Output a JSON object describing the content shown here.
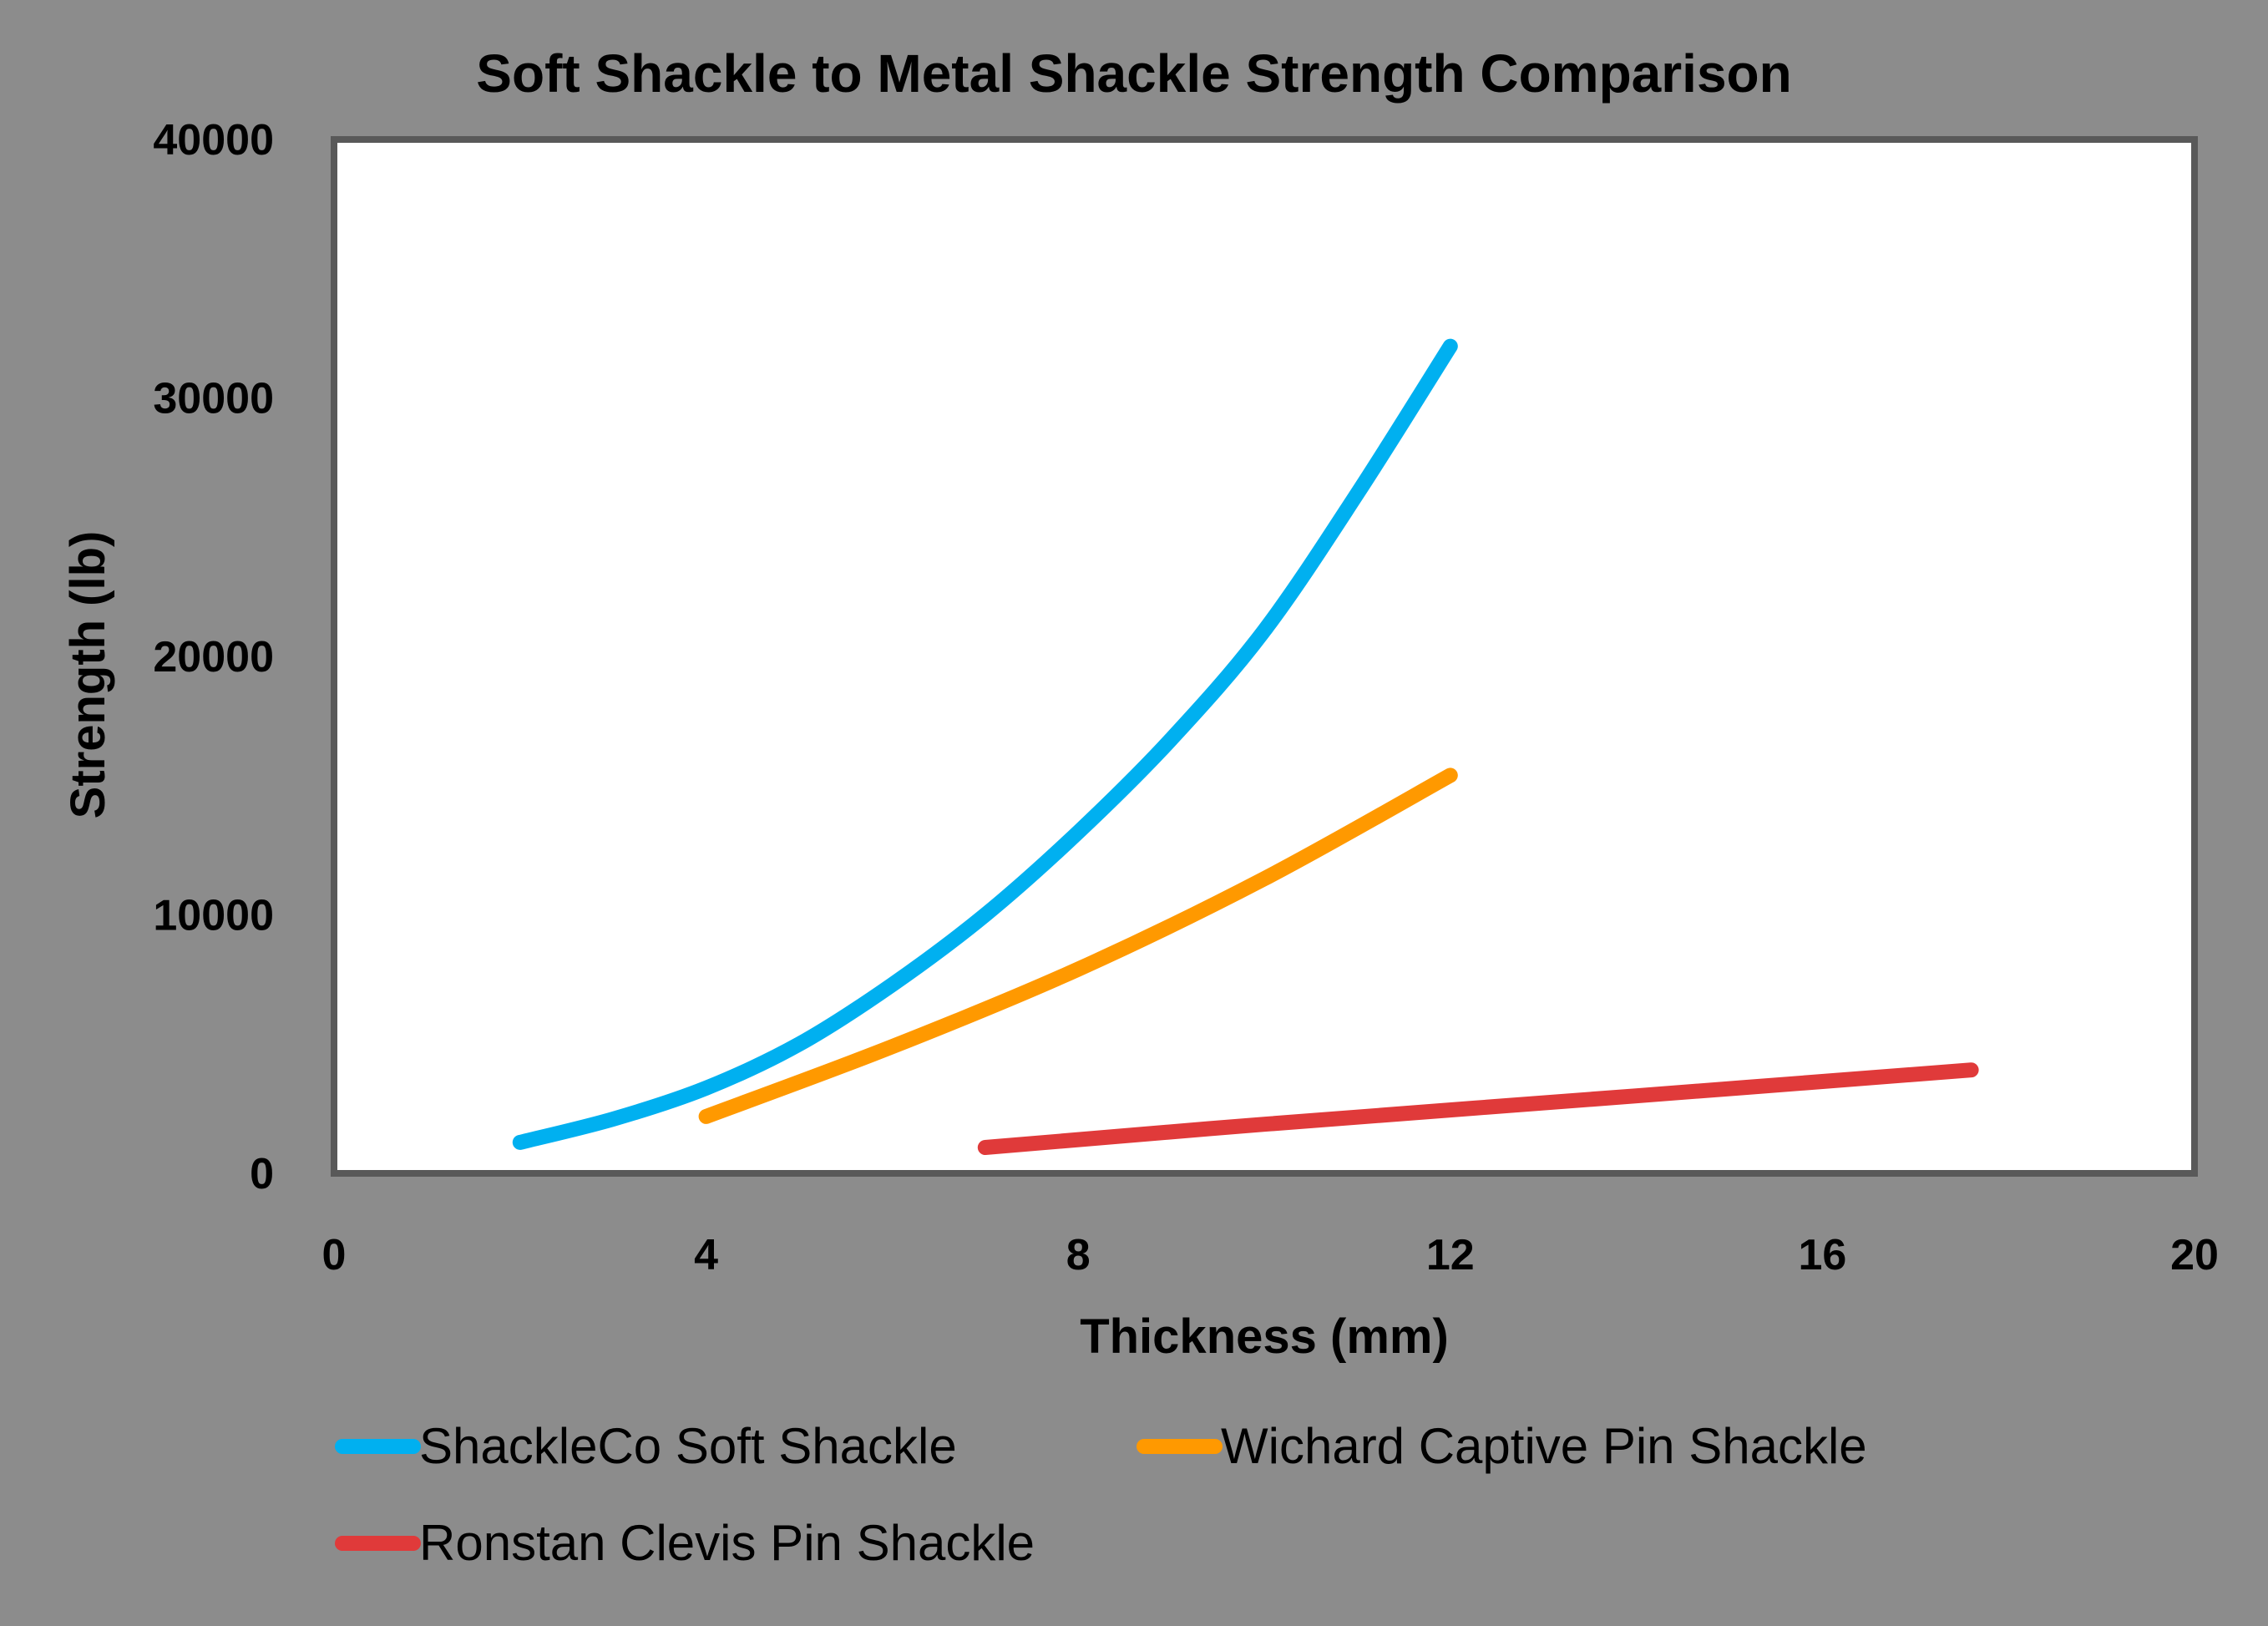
{
  "chart_data": {
    "type": "line",
    "title": "Soft Shackle to Metal Shackle Strength Comparison",
    "xlabel": "Thickness (mm)",
    "ylabel": "Strength (lb)",
    "xlim": [
      0,
      20
    ],
    "ylim": [
      0,
      40000
    ],
    "xticks": [
      0,
      4,
      8,
      12,
      16,
      20
    ],
    "yticks": [
      0,
      10000,
      20000,
      30000,
      40000
    ],
    "grid": false,
    "legend_position": "bottom",
    "series": [
      {
        "name": "ShackleCo Soft Shackle",
        "color": "#00b0f0",
        "x": [
          2,
          3,
          4,
          5,
          6,
          7,
          8,
          9,
          10,
          11,
          12
        ],
        "y": [
          1200,
          2100,
          3300,
          5000,
          7300,
          10000,
          13200,
          16800,
          21000,
          26300,
          32000
        ]
      },
      {
        "name": "Wichard Captive Pin Shackle",
        "color": "#ff9900",
        "x": [
          4,
          6,
          8,
          10,
          12
        ],
        "y": [
          2200,
          4900,
          7900,
          11400,
          15400
        ]
      },
      {
        "name": "Ronstan Clevis Pin Shackle",
        "color": "#e03a3a",
        "x": [
          7,
          10,
          14,
          17.6
        ],
        "y": [
          1000,
          1900,
          3000,
          4000
        ]
      }
    ]
  }
}
